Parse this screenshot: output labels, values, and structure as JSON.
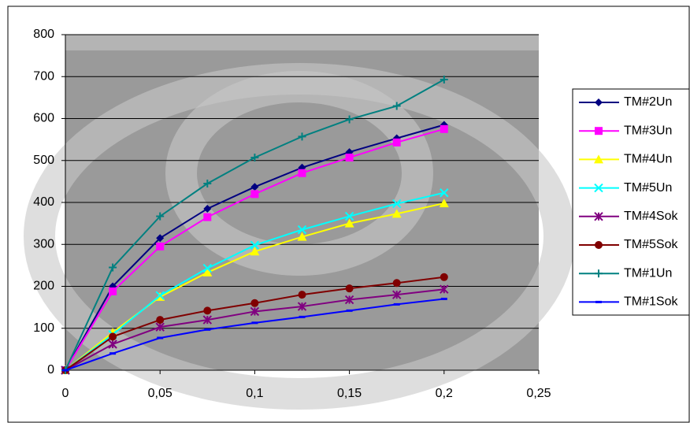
{
  "chart_data": {
    "type": "line",
    "x": [
      0,
      0.025,
      0.05,
      0.075,
      0.1,
      0.125,
      0.15,
      0.175,
      0.2
    ],
    "series": [
      {
        "name": "TM#2Un",
        "color": "#000080",
        "marker": "diamond",
        "values": [
          0,
          200,
          315,
          385,
          437,
          483,
          520,
          553,
          585
        ]
      },
      {
        "name": "TM#3Un",
        "color": "#ff00ff",
        "marker": "square",
        "values": [
          0,
          188,
          295,
          365,
          420,
          470,
          507,
          543,
          575
        ]
      },
      {
        "name": "TM#4Un",
        "color": "#ffff00",
        "marker": "triangle",
        "values": [
          0,
          90,
          175,
          233,
          283,
          318,
          350,
          373,
          398
        ]
      },
      {
        "name": "TM#5Un",
        "color": "#00ffff",
        "marker": "x",
        "values": [
          0,
          85,
          178,
          243,
          298,
          335,
          367,
          397,
          423
        ]
      },
      {
        "name": "TM#4Sok",
        "color": "#800080",
        "marker": "star",
        "values": [
          0,
          62,
          103,
          120,
          140,
          152,
          168,
          180,
          193
        ]
      },
      {
        "name": "TM#5Sok",
        "color": "#800000",
        "marker": "circle",
        "values": [
          0,
          80,
          120,
          142,
          160,
          180,
          195,
          208,
          222
        ]
      },
      {
        "name": "TM#1Un",
        "color": "#008080",
        "marker": "plus",
        "values": [
          0,
          245,
          367,
          445,
          507,
          557,
          598,
          630,
          693
        ]
      },
      {
        "name": "TM#1Sok",
        "color": "#0000ff",
        "marker": "dash",
        "values": [
          0,
          40,
          77,
          97,
          113,
          127,
          142,
          157,
          170
        ]
      }
    ],
    "xlim": [
      0,
      0.25
    ],
    "xticks": [
      0,
      {
        "value": 0.05,
        "label": "0,05"
      },
      {
        "value": 0.1,
        "label": "0,1"
      },
      {
        "value": 0.15,
        "label": "0,15"
      },
      {
        "value": 0.2,
        "label": "0,2"
      },
      {
        "value": 0.25,
        "label": "0,25"
      }
    ],
    "ylim": [
      0,
      800
    ],
    "yticks": [
      0,
      100,
      200,
      300,
      400,
      500,
      600,
      700,
      800
    ],
    "grid": true
  }
}
